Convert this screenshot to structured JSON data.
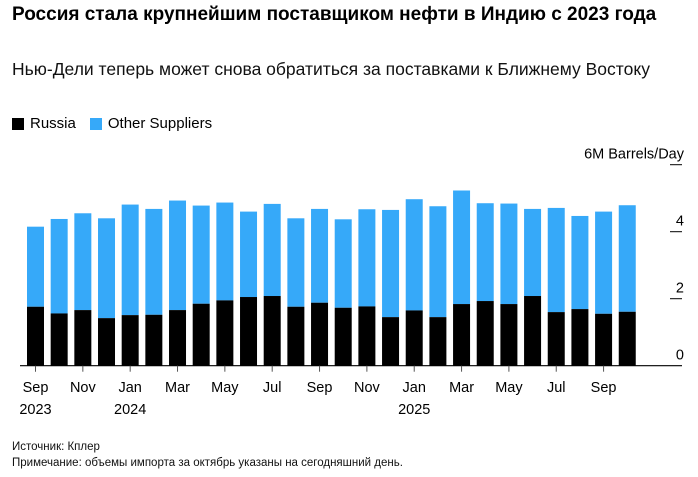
{
  "header": {
    "title": "Россия стала крупнейшим поставщиком нефти в Индию с 2023 года",
    "subtitle": "Нью-Дели теперь может снова обратиться за поставками к Ближнему Востоку"
  },
  "footer": {
    "source": "Источник: Кплер",
    "note": "Примечание: объемы импорта за октябрь указаны на сегодняшний день."
  },
  "chart_data": {
    "type": "bar",
    "stacked": true,
    "ylabel": "6M Barrels/Day",
    "ylim": [
      0,
      6
    ],
    "yticks": [
      0,
      2,
      4,
      6
    ],
    "ytick_labels": [
      "0",
      "2",
      "4",
      "6M Barrels/Day"
    ],
    "categories": [
      "Sep 2023",
      "Oct 2023",
      "Nov 2023",
      "Dec 2023",
      "Jan 2024",
      "Feb 2024",
      "Mar 2024",
      "Apr 2024",
      "May 2024",
      "Jun 2024",
      "Jul 2024",
      "Aug 2024",
      "Sep 2024",
      "Oct 2024",
      "Nov 2024",
      "Dec 2024",
      "Jan 2025",
      "Feb 2025",
      "Mar 2025",
      "Apr 2025",
      "May 2025",
      "Jun 2025",
      "Jul 2025",
      "Aug 2025",
      "Sep 2025",
      "Oct 2025"
    ],
    "xtick_labels": [
      {
        "index": 0,
        "month": "Sep",
        "year": "2023"
      },
      {
        "index": 2,
        "month": "Nov",
        "year": ""
      },
      {
        "index": 4,
        "month": "Jan",
        "year": "2024"
      },
      {
        "index": 6,
        "month": "Mar",
        "year": ""
      },
      {
        "index": 8,
        "month": "May",
        "year": ""
      },
      {
        "index": 10,
        "month": "Jul",
        "year": ""
      },
      {
        "index": 12,
        "month": "Sep",
        "year": ""
      },
      {
        "index": 14,
        "month": "Nov",
        "year": ""
      },
      {
        "index": 16,
        "month": "Jan",
        "year": "2025"
      },
      {
        "index": 18,
        "month": "Mar",
        "year": ""
      },
      {
        "index": 20,
        "month": "May",
        "year": ""
      },
      {
        "index": 22,
        "month": "Jul",
        "year": ""
      },
      {
        "index": 24,
        "month": "Sep",
        "year": ""
      }
    ],
    "legend_position": "top-left",
    "series": [
      {
        "name": "Russia",
        "color": "#000000",
        "values": [
          1.76,
          1.56,
          1.66,
          1.42,
          1.51,
          1.52,
          1.66,
          1.85,
          1.95,
          2.05,
          2.08,
          1.76,
          1.88,
          1.73,
          1.77,
          1.45,
          1.65,
          1.45,
          1.84,
          1.93,
          1.84,
          2.08,
          1.6,
          1.69,
          1.55,
          1.61
        ]
      },
      {
        "name": "Other Suppliers",
        "color": "#36a9f9",
        "values": [
          2.39,
          2.82,
          2.89,
          2.98,
          3.3,
          3.16,
          3.27,
          2.93,
          2.92,
          2.55,
          2.75,
          2.64,
          2.8,
          2.64,
          2.9,
          3.2,
          3.32,
          3.31,
          3.39,
          2.92,
          3.0,
          2.6,
          3.11,
          2.78,
          3.05,
          3.18
        ]
      }
    ]
  }
}
